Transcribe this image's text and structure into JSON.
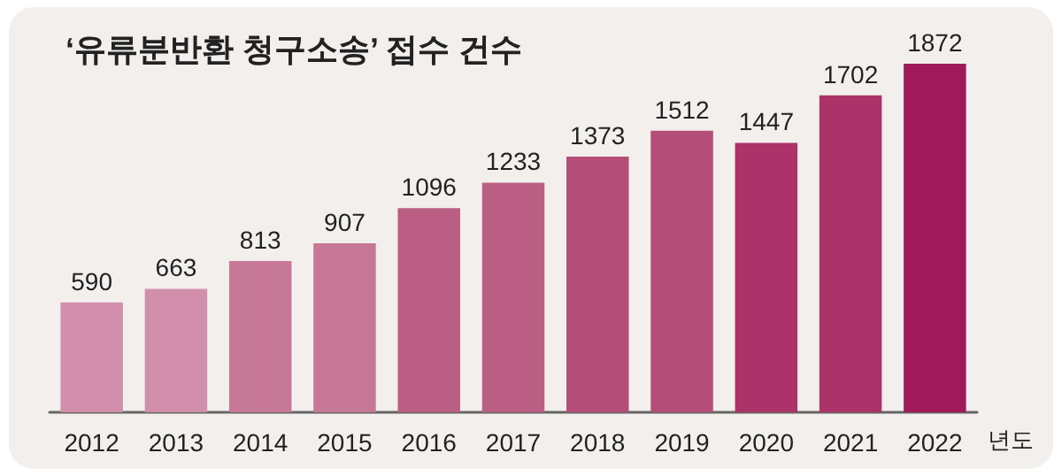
{
  "chart_data": {
    "type": "bar",
    "title": "‘유류분반환 청구소송’ 접수 건수",
    "xlabel": "년도",
    "categories": [
      "2012",
      "2013",
      "2014",
      "2015",
      "2016",
      "2017",
      "2018",
      "2019",
      "2020",
      "2021",
      "2022"
    ],
    "values": [
      590,
      663,
      813,
      907,
      1096,
      1233,
      1373,
      1512,
      1447,
      1702,
      1872
    ],
    "colors": [
      "#d18fab",
      "#d18fab",
      "#c67896",
      "#c67896",
      "#bb5e84",
      "#bb5e84",
      "#b44e78",
      "#b44e78",
      "#ab3369",
      "#ab3369",
      "#a01a5a"
    ],
    "data_labels": true
  }
}
